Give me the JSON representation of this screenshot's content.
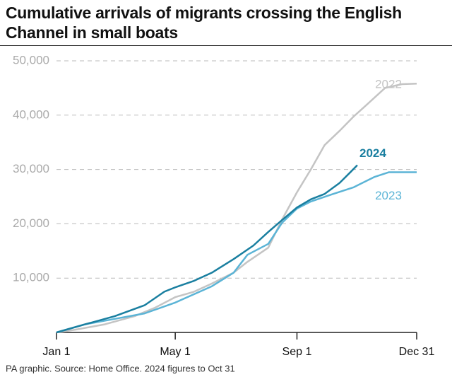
{
  "chart_data": {
    "type": "line",
    "title": "Cumulative arrivals of migrants crossing the English Channel in small boats",
    "footnote": "PA graphic. Source: Home Office. 2024 figures to Oct 31",
    "xlim": [
      1,
      365
    ],
    "xticks": [
      {
        "value": 1,
        "label": "Jan 1"
      },
      {
        "value": 121,
        "label": "May 1"
      },
      {
        "value": 244,
        "label": "Sep 1"
      },
      {
        "value": 365,
        "label": "Dec 31"
      }
    ],
    "ylim": [
      0,
      50000
    ],
    "yticks": [
      {
        "value": 10000,
        "label": "10,000"
      },
      {
        "value": 20000,
        "label": "20,000"
      },
      {
        "value": 30000,
        "label": "30,000"
      },
      {
        "value": 40000,
        "label": "40,000"
      },
      {
        "value": 50000,
        "label": "50,000"
      }
    ],
    "grid": true,
    "series": [
      {
        "name": "2022",
        "color": "#c4c4c4",
        "x": [
          1,
          20,
          50,
          80,
          100,
          121,
          140,
          158,
          180,
          194,
          215,
          229,
          244,
          258,
          272,
          287,
          301,
          315,
          333,
          350,
          365
        ],
        "values": [
          0,
          500,
          1500,
          3000,
          4500,
          6500,
          7500,
          9000,
          11000,
          13000,
          15600,
          20800,
          25800,
          30000,
          34500,
          37100,
          39700,
          42000,
          45000,
          45700,
          45800
        ]
      },
      {
        "name": "2023",
        "color": "#5bb4d6",
        "x": [
          1,
          30,
          60,
          90,
          121,
          158,
          180,
          194,
          215,
          229,
          244,
          258,
          279,
          301,
          322,
          337,
          365
        ],
        "values": [
          0,
          1500,
          2500,
          3500,
          5500,
          8500,
          11000,
          14300,
          16300,
          20200,
          22800,
          24100,
          25400,
          26700,
          28600,
          29500,
          29500
        ]
      },
      {
        "name": "2024",
        "color": "#1a7fa0",
        "x": [
          1,
          30,
          60,
          90,
          110,
          121,
          140,
          158,
          180,
          200,
          215,
          229,
          244,
          258,
          272,
          287,
          298,
          305
        ],
        "values": [
          0,
          1500,
          3000,
          5000,
          7500,
          8300,
          9500,
          11000,
          13500,
          16000,
          18500,
          20700,
          23000,
          24500,
          25500,
          27500,
          29500,
          30800
        ]
      }
    ]
  }
}
